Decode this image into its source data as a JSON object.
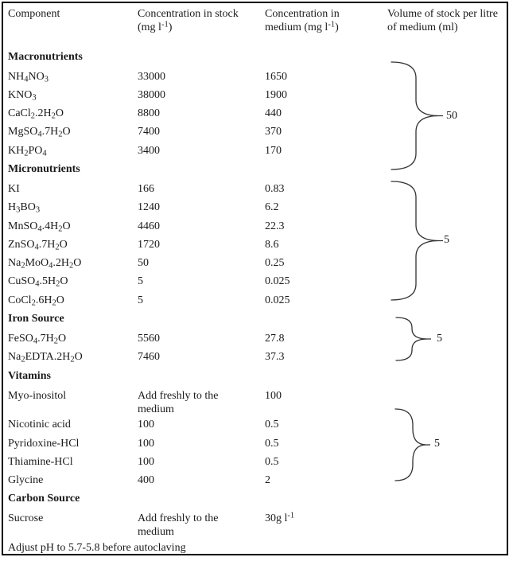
{
  "table": {
    "columns": [
      "Component",
      "Concentration in stock (mg l^-1^)",
      "Concentration in medium (mg l^-1^)",
      "Volume of stock per litre of medium (ml)"
    ],
    "sections": [
      {
        "header": "Macronutrients",
        "rows": [
          [
            "NH~4~NO~3~",
            "33000",
            "1650"
          ],
          [
            "KNO~3~",
            "38000",
            "1900"
          ],
          [
            "CaCl~2~.2H~2~O",
            "8800",
            "440"
          ],
          [
            "MgSO~4~.7H~2~O",
            "7400",
            "370"
          ],
          [
            "KH~2~PO~4~",
            "3400",
            "170"
          ]
        ]
      },
      {
        "header": "Micronutrients",
        "rows": [
          [
            "KI",
            "166",
            "0.83"
          ],
          [
            "H~3~BO~3~",
            "1240",
            "6.2"
          ],
          [
            "MnSO~4~.4H~2~O",
            "4460",
            "22.3"
          ],
          [
            "ZnSO~4~.7H~2~O",
            "1720",
            "8.6"
          ],
          [
            "Na~2~MoO~4~.2H~2~O",
            "50",
            "0.25"
          ],
          [
            "CuSO~4~.5H~2~O",
            "5",
            "0.025"
          ],
          [
            "CoCl~2~.6H~2~O",
            "5",
            "0.025"
          ]
        ]
      },
      {
        "header": "Iron Source",
        "rows": [
          [
            "FeSO~4~.7H~2~O",
            "5560",
            "27.8"
          ],
          [
            "Na~2~EDTA.2H~2~O",
            "7460",
            "37.3"
          ]
        ]
      },
      {
        "header": "Vitamins",
        "rows": [
          [
            "Myo-inositol",
            "Add freshly to the medium",
            "100"
          ],
          [
            "Nicotinic acid",
            "100",
            "0.5"
          ],
          [
            "Pyridoxine-HCl",
            "100",
            "0.5"
          ],
          [
            "Thiamine-HCl",
            "100",
            "0.5"
          ],
          [
            "Glycine",
            "400",
            "2"
          ]
        ]
      },
      {
        "header": "Carbon Source",
        "rows": [
          [
            "Sucrose",
            "Add freshly to the medium",
            "30g l^-1^"
          ]
        ]
      }
    ],
    "footer_note": "Adjust pH to 5.7-5.8 before autoclaving"
  },
  "volume_braces": [
    {
      "label": "50",
      "applies_to": "Macronutrients"
    },
    {
      "label": "5",
      "applies_to": "Micronutrients"
    },
    {
      "label": "5",
      "applies_to": "Iron Source"
    },
    {
      "label": "5",
      "applies_to": "Vitamins"
    }
  ],
  "colors": {
    "text": "#1a1a1a",
    "border": "#000000",
    "background": "#ffffff",
    "brace": "#333333"
  }
}
